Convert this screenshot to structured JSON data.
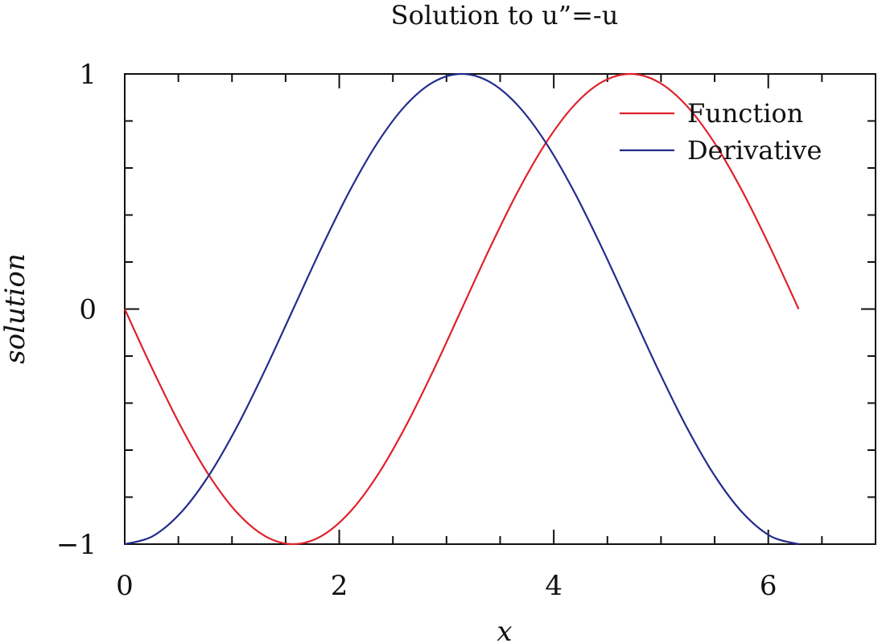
{
  "chart_data": {
    "type": "line",
    "title": "Solution to u”=-u",
    "xlabel": "x",
    "ylabel": "solution",
    "xlim": [
      0,
      7
    ],
    "ylim": [
      -1,
      1
    ],
    "x_ticks": [
      0,
      2,
      4,
      6
    ],
    "x_tick_labels": [
      "0",
      "2",
      "4",
      "6"
    ],
    "x_minor_step": 0.5,
    "y_ticks": [
      -1,
      0,
      1
    ],
    "y_tick_labels": [
      "−1",
      "0",
      "1"
    ],
    "y_minor_step": 0.2,
    "legend_position": "top-right",
    "grid": false,
    "series": [
      {
        "name": "Function",
        "color": "#e0202a",
        "x": [
          0,
          0.2618,
          0.5236,
          0.7854,
          1.0472,
          1.309,
          1.5708,
          1.8326,
          2.0944,
          2.3562,
          2.618,
          2.8798,
          3.1416,
          3.4034,
          3.6652,
          3.927,
          4.1888,
          4.4506,
          4.7124,
          4.9742,
          5.236,
          5.4978,
          5.7596,
          6.0214,
          6.2832
        ],
        "y": [
          0,
          -0.2588,
          -0.5,
          -0.7071,
          -0.866,
          -0.9659,
          -1,
          -0.9659,
          -0.866,
          -0.7071,
          -0.5,
          -0.2588,
          0,
          0.2588,
          0.5,
          0.7071,
          0.866,
          0.9659,
          1,
          0.9659,
          0.866,
          0.7071,
          0.5,
          0.2588,
          0
        ]
      },
      {
        "name": "Derivative",
        "color": "#232c8c",
        "x": [
          0,
          0.2618,
          0.5236,
          0.7854,
          1.0472,
          1.309,
          1.5708,
          1.8326,
          2.0944,
          2.3562,
          2.618,
          2.8798,
          3.1416,
          3.4034,
          3.6652,
          3.927,
          4.1888,
          4.4506,
          4.7124,
          4.9742,
          5.236,
          5.4978,
          5.7596,
          6.0214,
          6.2832
        ],
        "y": [
          -1,
          -0.9659,
          -0.866,
          -0.7071,
          -0.5,
          -0.2588,
          0,
          0.2588,
          0.5,
          0.7071,
          0.866,
          0.9659,
          1,
          0.9659,
          0.866,
          0.7071,
          0.5,
          0.2588,
          0,
          -0.2588,
          -0.5,
          -0.7071,
          -0.866,
          -0.9659,
          -1
        ]
      }
    ]
  }
}
